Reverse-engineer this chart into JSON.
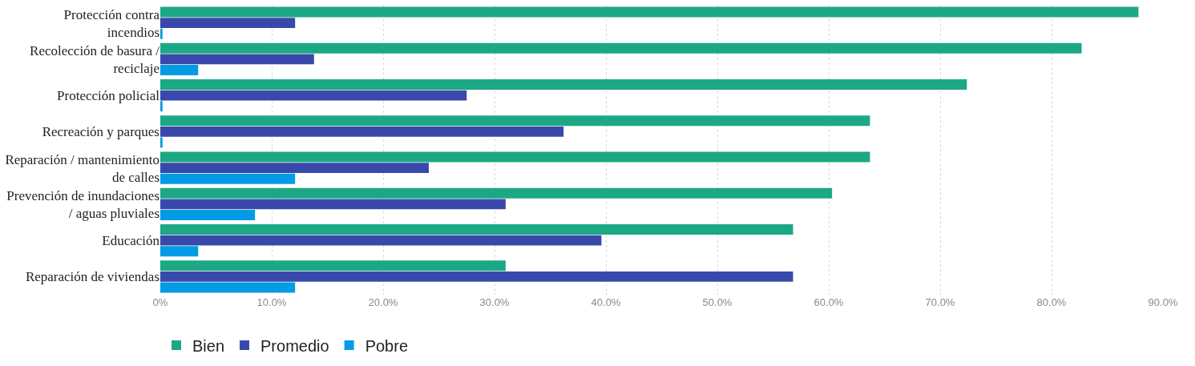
{
  "chart_data": {
    "type": "bar",
    "orientation": "horizontal",
    "categories": [
      "Protección contra incendios",
      "Recolección de basura / reciclaje",
      "Protección policial",
      "Recreación y parques",
      "Reparación / mantenimiento de calles",
      "Prevención de inundaciones / aguas pluviales",
      "Educación",
      "Reparación de viviendas"
    ],
    "series": [
      {
        "name": "Bien",
        "color": "#1ca884",
        "values": [
          87.8,
          82.7,
          72.4,
          63.7,
          63.7,
          60.3,
          56.8,
          31.0
        ]
      },
      {
        "name": "Promedio",
        "color": "#3949ab",
        "values": [
          12.1,
          13.8,
          27.5,
          36.2,
          24.1,
          31.0,
          39.6,
          56.8
        ]
      },
      {
        "name": "Pobre",
        "color": "#039be5",
        "values": [
          0.2,
          3.4,
          0.2,
          0.2,
          12.1,
          8.5,
          3.4,
          12.1
        ]
      }
    ],
    "xlim": [
      0,
      90
    ],
    "xticks": [
      {
        "value": 0,
        "label": "0%"
      },
      {
        "value": 10,
        "label": "10.0%"
      },
      {
        "value": 20,
        "label": "20.0%"
      },
      {
        "value": 30,
        "label": "30.0%"
      },
      {
        "value": 40,
        "label": "40.0%"
      },
      {
        "value": 50,
        "label": "50.0%"
      },
      {
        "value": 60,
        "label": "60.0%"
      },
      {
        "value": 70,
        "label": "70.0%"
      },
      {
        "value": 80,
        "label": "80.0%"
      },
      {
        "value": 90,
        "label": "90.0%"
      }
    ],
    "grid": "x",
    "legend": "bottom left"
  }
}
